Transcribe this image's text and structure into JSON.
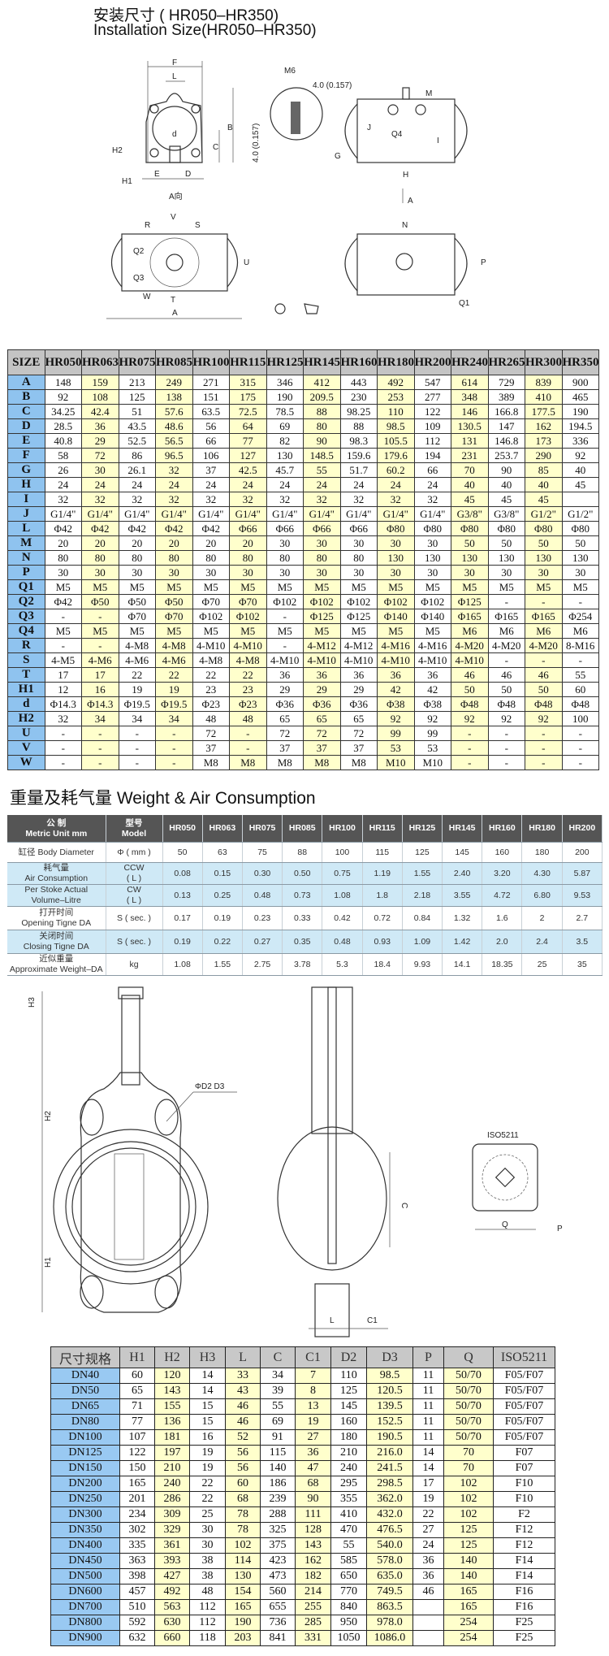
{
  "header": {
    "title_cn": "安装尺寸 ( HR050–HR350)",
    "title_en": "Installation Size(HR050–HR350)"
  },
  "actuator_drawing_labels": {
    "F": "F",
    "L": "L",
    "M6": "M6",
    "thread": "4.0 (0.157)",
    "depth": "4.0 (0.157)",
    "M": "M",
    "B": "B",
    "d": "d",
    "C": "C",
    "H2": "H2",
    "H1": "H1",
    "E": "E",
    "D": "D",
    "G": "G",
    "J": "J",
    "Q4": "Q4",
    "I": "I",
    "H": "H",
    "A_arrow": "A",
    "A_view": "A向",
    "V": "V",
    "R": "R",
    "S": "S",
    "Q2": "Q2",
    "Q3": "Q3",
    "U": "U",
    "W": "W",
    "T": "T",
    "A": "A",
    "N": "N",
    "P": "P",
    "Q1": "Q1"
  },
  "size_table": {
    "corner": "SIZE",
    "models": [
      "HR050",
      "HR063",
      "HR075",
      "HR085",
      "HR100",
      "HR115",
      "HR125",
      "HR145",
      "HR160",
      "HR180",
      "HR200",
      "HR240",
      "HR265",
      "HR300",
      "HR350"
    ],
    "rows": [
      {
        "key": "A",
        "values": [
          "148",
          "159",
          "213",
          "249",
          "271",
          "315",
          "346",
          "412",
          "443",
          "492",
          "547",
          "614",
          "729",
          "839",
          "900"
        ]
      },
      {
        "key": "B",
        "values": [
          "92",
          "108",
          "125",
          "138",
          "151",
          "175",
          "190",
          "209.5",
          "230",
          "253",
          "277",
          "348",
          "389",
          "410",
          "465"
        ]
      },
      {
        "key": "C",
        "values": [
          "34.25",
          "42.4",
          "51",
          "57.6",
          "63.5",
          "72.5",
          "78.5",
          "88",
          "98.25",
          "110",
          "122",
          "146",
          "166.8",
          "177.5",
          "190"
        ]
      },
      {
        "key": "D",
        "values": [
          "28.5",
          "36",
          "43.5",
          "48.6",
          "56",
          "64",
          "69",
          "80",
          "88",
          "98.5",
          "109",
          "130.5",
          "147",
          "162",
          "194.5"
        ]
      },
      {
        "key": "E",
        "values": [
          "40.8",
          "29",
          "52.5",
          "56.5",
          "66",
          "77",
          "82",
          "90",
          "98.3",
          "105.5",
          "112",
          "131",
          "146.8",
          "173",
          "336"
        ]
      },
      {
        "key": "F",
        "values": [
          "58",
          "72",
          "86",
          "96.5",
          "106",
          "127",
          "130",
          "148.5",
          "159.6",
          "179.6",
          "194",
          "231",
          "253.7",
          "290",
          "92"
        ]
      },
      {
        "key": "G",
        "values": [
          "26",
          "30",
          "26.1",
          "32",
          "37",
          "42.5",
          "45.7",
          "55",
          "51.7",
          "60.2",
          "66",
          "70",
          "90",
          "85",
          "40"
        ]
      },
      {
        "key": "H",
        "values": [
          "24",
          "24",
          "24",
          "24",
          "24",
          "24",
          "24",
          "24",
          "24",
          "24",
          "24",
          "40",
          "40",
          "40",
          "45"
        ]
      },
      {
        "key": "I",
        "values": [
          "32",
          "32",
          "32",
          "32",
          "32",
          "32",
          "32",
          "32",
          "32",
          "32",
          "32",
          "45",
          "45",
          "45",
          ""
        ]
      },
      {
        "key": "J",
        "values": [
          "G1/4\"",
          "G1/4\"",
          "G1/4\"",
          "G1/4\"",
          "G1/4\"",
          "G1/4\"",
          "G1/4\"",
          "G1/4\"",
          "G1/4\"",
          "G1/4\"",
          "G1/4\"",
          "G3/8\"",
          "G3/8\"",
          "G1/2\"",
          "G1/2\""
        ]
      },
      {
        "key": "L",
        "values": [
          "Φ42",
          "Φ42",
          "Φ42",
          "Φ42",
          "Φ42",
          "Φ66",
          "Φ66",
          "Φ66",
          "Φ66",
          "Φ80",
          "Φ80",
          "Φ80",
          "Φ80",
          "Φ80",
          "Φ80"
        ]
      },
      {
        "key": "M",
        "values": [
          "20",
          "20",
          "20",
          "20",
          "20",
          "20",
          "30",
          "30",
          "30",
          "30",
          "30",
          "50",
          "50",
          "50",
          "50"
        ]
      },
      {
        "key": "N",
        "values": [
          "80",
          "80",
          "80",
          "80",
          "80",
          "80",
          "80",
          "80",
          "80",
          "130",
          "130",
          "130",
          "130",
          "130",
          "130"
        ]
      },
      {
        "key": "P",
        "values": [
          "30",
          "30",
          "30",
          "30",
          "30",
          "30",
          "30",
          "30",
          "30",
          "30",
          "30",
          "30",
          "30",
          "30",
          "30"
        ]
      },
      {
        "key": "Q1",
        "values": [
          "M5",
          "M5",
          "M5",
          "M5",
          "M5",
          "M5",
          "M5",
          "M5",
          "M5",
          "M5",
          "M5",
          "M5",
          "M5",
          "M5",
          "M5"
        ]
      },
      {
        "key": "Q2",
        "values": [
          "Φ42",
          "Φ50",
          "Φ50",
          "Φ50",
          "Φ70",
          "Φ70",
          "Φ102",
          "Φ102",
          "Φ102",
          "Φ102",
          "Φ102",
          "Φ125",
          "-",
          "-",
          "-"
        ]
      },
      {
        "key": "Q3",
        "values": [
          "-",
          "-",
          "Φ70",
          "Φ70",
          "Φ102",
          "Φ102",
          "-",
          "Φ125",
          "Φ125",
          "Φ140",
          "Φ140",
          "Φ165",
          "Φ165",
          "Φ165",
          "Φ254"
        ]
      },
      {
        "key": "Q4",
        "values": [
          "M5",
          "M5",
          "M5",
          "M5",
          "M5",
          "M5",
          "M5",
          "M5",
          "M5",
          "M5",
          "M5",
          "M6",
          "M6",
          "M6",
          "M6"
        ]
      },
      {
        "key": "R",
        "values": [
          "-",
          "-",
          "4-M8",
          "4-M8",
          "4-M10",
          "4-M10",
          "-",
          "4-M12",
          "4-M12",
          "4-M16",
          "4-M16",
          "4-M20",
          "4-M20",
          "4-M20",
          "8-M16"
        ]
      },
      {
        "key": "S",
        "values": [
          "4-M5",
          "4-M6",
          "4-M6",
          "4-M6",
          "4-M8",
          "4-M8",
          "4-M10",
          "4-M10",
          "4-M10",
          "4-M10",
          "4-M10",
          "4-M10",
          "-",
          "-",
          "-"
        ]
      },
      {
        "key": "T",
        "values": [
          "17",
          "17",
          "22",
          "22",
          "22",
          "22",
          "36",
          "36",
          "36",
          "36",
          "36",
          "46",
          "46",
          "46",
          "55"
        ]
      },
      {
        "key": "H1",
        "values": [
          "12",
          "16",
          "19",
          "19",
          "23",
          "23",
          "29",
          "29",
          "29",
          "42",
          "42",
          "50",
          "50",
          "50",
          "60"
        ]
      },
      {
        "key": "d",
        "values": [
          "Φ14.3",
          "Φ14.3",
          "Φ19.5",
          "Φ19.5",
          "Φ23",
          "Φ23",
          "Φ36",
          "Φ36",
          "Φ36",
          "Φ38",
          "Φ38",
          "Φ48",
          "Φ48",
          "Φ48",
          "Φ48"
        ]
      },
      {
        "key": "H2",
        "values": [
          "32",
          "34",
          "34",
          "34",
          "48",
          "48",
          "65",
          "65",
          "65",
          "92",
          "92",
          "92",
          "92",
          "92",
          "100"
        ]
      },
      {
        "key": "U",
        "values": [
          "-",
          "-",
          "-",
          "-",
          "72",
          "-",
          "72",
          "72",
          "72",
          "99",
          "99",
          "-",
          "-",
          "-",
          "-"
        ]
      },
      {
        "key": "V",
        "values": [
          "-",
          "-",
          "-",
          "-",
          "37",
          "-",
          "37",
          "37",
          "37",
          "53",
          "53",
          "-",
          "-",
          "-",
          "-"
        ]
      },
      {
        "key": "W",
        "values": [
          "-",
          "-",
          "-",
          "-",
          "M8",
          "M8",
          "M8",
          "M8",
          "M8",
          "M10",
          "M10",
          "-",
          "-",
          "-",
          "-"
        ]
      }
    ]
  },
  "weight_section": {
    "title": "重量及耗气量 Weight & Air Consumption",
    "head_unit_cn": "公 制",
    "head_unit_en": "Metric Unit mm",
    "head_model_cn": "型号",
    "head_model_en": "Model",
    "models": [
      "HR050",
      "HR063",
      "HR075",
      "HR085",
      "HR100",
      "HR115",
      "HR125",
      "HR145",
      "HR160",
      "HR180",
      "HR200"
    ],
    "rows": [
      {
        "label_cn": "缸径",
        "label_en": "Body Diameter",
        "unit_a": "Φ ( mm )",
        "unit_b": "",
        "shade": false,
        "inline": true,
        "values": [
          "50",
          "63",
          "75",
          "88",
          "100",
          "115",
          "125",
          "145",
          "160",
          "180",
          "200"
        ]
      },
      {
        "label_cn": "耗气量",
        "label_en": "Air Consumption",
        "unit_a": "CCW",
        "unit_b": "( L )",
        "shade": true,
        "values": [
          "0.08",
          "0.15",
          "0.30",
          "0.50",
          "0.75",
          "1.19",
          "1.55",
          "2.40",
          "3.20",
          "4.30",
          "5.87"
        ]
      },
      {
        "label_cn": "Per Stoke Actual",
        "label_en": "Volume–Litre",
        "unit_a": "CW",
        "unit_b": "( L )",
        "shade": true,
        "values": [
          "0.13",
          "0.25",
          "0.48",
          "0.73",
          "1.08",
          "1.8",
          "2.18",
          "3.55",
          "4.72",
          "6.80",
          "9.53"
        ]
      },
      {
        "label_cn": "打开时间",
        "label_en": "Opening Tigne DA",
        "unit_a": "S ( sec. )",
        "unit_b": "",
        "shade": false,
        "values": [
          "0.17",
          "0.19",
          "0.23",
          "0.33",
          "0.42",
          "0.72",
          "0.84",
          "1.32",
          "1.6",
          "2",
          "2.7"
        ]
      },
      {
        "label_cn": "关闭时间",
        "label_en": "Closing Tigne DA",
        "unit_a": "S ( sec. )",
        "unit_b": "",
        "shade": true,
        "values": [
          "0.19",
          "0.22",
          "0.27",
          "0.35",
          "0.48",
          "0.93",
          "1.09",
          "1.42",
          "2.0",
          "2.4",
          "3.5"
        ]
      },
      {
        "label_cn": "近似重量",
        "label_en": "Approximate Weight–DA",
        "unit_a": "kg",
        "unit_b": "",
        "shade": false,
        "values": [
          "1.08",
          "1.55",
          "2.75",
          "3.78",
          "5.3",
          "18.4",
          "9.93",
          "14.1",
          "18.35",
          "25",
          "35"
        ]
      }
    ]
  },
  "valve_drawing_labels": {
    "H3": "H3",
    "H2": "H2",
    "H1": "H1",
    "D2D3": "ΦD2  D3",
    "C": "C",
    "L": "L",
    "C1": "C1",
    "iso": "ISO5211",
    "Q": "Q",
    "P": "P"
  },
  "valve_table": {
    "headers": [
      "尺寸规格",
      "H1",
      "H2",
      "H3",
      "L",
      "C",
      "C1",
      "D2",
      "D3",
      "P",
      "Q",
      "ISO5211"
    ],
    "rows": [
      [
        "DN40",
        "60",
        "120",
        "14",
        "33",
        "34",
        "7",
        "110",
        "98.5",
        "11",
        "50/70",
        "F05/F07"
      ],
      [
        "DN50",
        "65",
        "143",
        "14",
        "43",
        "39",
        "8",
        "125",
        "120.5",
        "11",
        "50/70",
        "F05/F07"
      ],
      [
        "DN65",
        "71",
        "155",
        "15",
        "46",
        "55",
        "13",
        "145",
        "139.5",
        "11",
        "50/70",
        "F05/F07"
      ],
      [
        "DN80",
        "77",
        "136",
        "15",
        "46",
        "69",
        "19",
        "160",
        "152.5",
        "11",
        "50/70",
        "F05/F07"
      ],
      [
        "DN100",
        "107",
        "181",
        "16",
        "52",
        "91",
        "27",
        "180",
        "190.5",
        "11",
        "50/70",
        "F05/F07"
      ],
      [
        "DN125",
        "122",
        "197",
        "19",
        "56",
        "115",
        "36",
        "210",
        "216.0",
        "14",
        "70",
        "F07"
      ],
      [
        "DN150",
        "150",
        "210",
        "19",
        "56",
        "140",
        "47",
        "240",
        "241.5",
        "14",
        "70",
        "F07"
      ],
      [
        "DN200",
        "165",
        "240",
        "22",
        "60",
        "186",
        "68",
        "295",
        "298.5",
        "17",
        "102",
        "F10"
      ],
      [
        "DN250",
        "201",
        "286",
        "22",
        "68",
        "239",
        "90",
        "355",
        "362.0",
        "19",
        "102",
        "F10"
      ],
      [
        "DN300",
        "234",
        "309",
        "25",
        "78",
        "288",
        "111",
        "410",
        "432.0",
        "22",
        "102",
        "F2"
      ],
      [
        "DN350",
        "302",
        "329",
        "30",
        "78",
        "325",
        "128",
        "470",
        "476.5",
        "27",
        "125",
        "F12"
      ],
      [
        "DN400",
        "335",
        "361",
        "30",
        "102",
        "375",
        "143",
        "55",
        "540.0",
        "24",
        "125",
        "F12"
      ],
      [
        "DN450",
        "363",
        "393",
        "38",
        "114",
        "423",
        "162",
        "585",
        "578.0",
        "36",
        "140",
        "F14"
      ],
      [
        "DN500",
        "398",
        "427",
        "38",
        "130",
        "473",
        "182",
        "650",
        "635.0",
        "36",
        "140",
        "F14"
      ],
      [
        "DN600",
        "457",
        "492",
        "48",
        "154",
        "560",
        "214",
        "770",
        "749.5",
        "46",
        "165",
        "F16"
      ],
      [
        "DN700",
        "510",
        "563",
        "112",
        "165",
        "655",
        "255",
        "840",
        "863.5",
        "",
        "165",
        "F16"
      ],
      [
        "DN800",
        "592",
        "630",
        "112",
        "190",
        "736",
        "285",
        "950",
        "978.0",
        "",
        "254",
        "F25"
      ],
      [
        "DN900",
        "632",
        "660",
        "118",
        "203",
        "841",
        "331",
        "1050",
        "1086.0",
        "",
        "254",
        "F25"
      ]
    ]
  },
  "colors": {
    "key_blue": "#8fc3ef",
    "yellow": "#ffffcc",
    "header_gray": "#c4c4c4",
    "weight_header": "#555555",
    "weight_blue": "#cfe9f6"
  }
}
